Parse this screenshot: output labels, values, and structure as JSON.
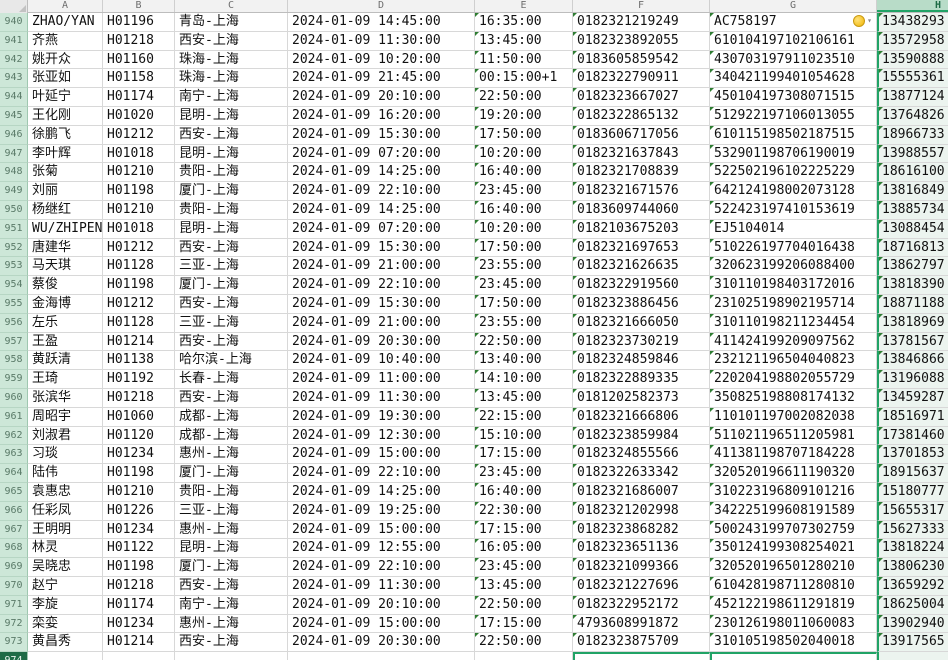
{
  "sheet": {
    "columns": [
      "A",
      "B",
      "C",
      "D",
      "E",
      "F",
      "G",
      "H"
    ],
    "icons": {
      "error_checking": "warning-circle",
      "dropdown": "▾"
    },
    "accent_colors": {
      "selection_green": "#21a366",
      "header_green": "#cde7d8",
      "warning_yellow": "#f0b400"
    },
    "rows": [
      {
        "n": "940",
        "a": "ZHAO/YAN",
        "b": "H01196",
        "c": "青岛-上海",
        "d": "2024-01-09 14:45:00",
        "e": "16:35:00",
        "f": "0182321219249",
        "g": "AC758197",
        "h": "13438293",
        "warning": true
      },
      {
        "n": "941",
        "a": "齐燕",
        "b": "H01218",
        "c": "西安-上海",
        "d": "2024-01-09 11:30:00",
        "e": "13:45:00",
        "f": "0182323892055",
        "g": "610104197102106161",
        "h": "13572958"
      },
      {
        "n": "942",
        "a": "姚开众",
        "b": "H01160",
        "c": "珠海-上海",
        "d": "2024-01-09 10:20:00",
        "e": "11:50:00",
        "f": "0183605859542",
        "g": "430703197911023510",
        "h": "13590888"
      },
      {
        "n": "943",
        "a": "张亚如",
        "b": "H01158",
        "c": "珠海-上海",
        "d": "2024-01-09 21:45:00",
        "e": "00:15:00+1",
        "f": "0182322790911",
        "g": "340421199401054628",
        "h": "15555361"
      },
      {
        "n": "944",
        "a": "叶延宁",
        "b": "H01174",
        "c": "南宁-上海",
        "d": "2024-01-09 20:10:00",
        "e": "22:50:00",
        "f": "0182323667027",
        "g": "450104197308071515",
        "h": "13877124"
      },
      {
        "n": "945",
        "a": "王化刚",
        "b": "H01020",
        "c": "昆明-上海",
        "d": "2024-01-09 16:20:00",
        "e": "19:20:00",
        "f": "0182322865132",
        "g": "512922197106013055",
        "h": "13764826"
      },
      {
        "n": "946",
        "a": "徐鹏飞",
        "b": "H01212",
        "c": "西安-上海",
        "d": "2024-01-09 15:30:00",
        "e": "17:50:00",
        "f": "0183606717056",
        "g": "610115198502187515",
        "h": "18966733"
      },
      {
        "n": "947",
        "a": "李叶辉",
        "b": "H01018",
        "c": "昆明-上海",
        "d": "2024-01-09 07:20:00",
        "e": "10:20:00",
        "f": "0182321637843",
        "g": "532901198706190019",
        "h": "13988557"
      },
      {
        "n": "948",
        "a": "张菊",
        "b": "H01210",
        "c": "贵阳-上海",
        "d": "2024-01-09 14:25:00",
        "e": "16:40:00",
        "f": "0182321708839",
        "g": "522502196102225229",
        "h": "18616100"
      },
      {
        "n": "949",
        "a": "刘丽",
        "b": "H01198",
        "c": "厦门-上海",
        "d": "2024-01-09 22:10:00",
        "e": "23:45:00",
        "f": "0182321671576",
        "g": "642124198002073128",
        "h": "13816849"
      },
      {
        "n": "950",
        "a": "杨继红",
        "b": "H01210",
        "c": "贵阳-上海",
        "d": "2024-01-09 14:25:00",
        "e": "16:40:00",
        "f": "0183609744060",
        "g": "522423197410153619",
        "h": "13885734"
      },
      {
        "n": "951",
        "a": "WU/ZHIPEN",
        "b": "H01018",
        "c": "昆明-上海",
        "d": "2024-01-09 07:20:00",
        "e": "10:20:00",
        "f": "0182103675203",
        "g": "EJ5104014",
        "h": "13088454"
      },
      {
        "n": "952",
        "a": "唐建华",
        "b": "H01212",
        "c": "西安-上海",
        "d": "2024-01-09 15:30:00",
        "e": "17:50:00",
        "f": "0182321697653",
        "g": "510226197704016438",
        "h": "18716813"
      },
      {
        "n": "953",
        "a": "马天琪",
        "b": "H01128",
        "c": "三亚-上海",
        "d": "2024-01-09 21:00:00",
        "e": "23:55:00",
        "f": "0182321626635",
        "g": "320623199206088400",
        "h": "13862797"
      },
      {
        "n": "954",
        "a": "蔡俊",
        "b": "H01198",
        "c": "厦门-上海",
        "d": "2024-01-09 22:10:00",
        "e": "23:45:00",
        "f": "0182322919560",
        "g": "310110198403172016",
        "h": "13818390"
      },
      {
        "n": "955",
        "a": "金海博",
        "b": "H01212",
        "c": "西安-上海",
        "d": "2024-01-09 15:30:00",
        "e": "17:50:00",
        "f": "0182323886456",
        "g": "231025198902195714",
        "h": "18871188"
      },
      {
        "n": "956",
        "a": "左乐",
        "b": "H01128",
        "c": "三亚-上海",
        "d": "2024-01-09 21:00:00",
        "e": "23:55:00",
        "f": "0182321666050",
        "g": "310110198211234454",
        "h": "13818969"
      },
      {
        "n": "957",
        "a": "王盈",
        "b": "H01214",
        "c": "西安-上海",
        "d": "2024-01-09 20:30:00",
        "e": "22:50:00",
        "f": "0182323730219",
        "g": "411424199209097562",
        "h": "13781567"
      },
      {
        "n": "958",
        "a": "黄跃清",
        "b": "H01138",
        "c": "哈尔滨-上海",
        "d": "2024-01-09 10:40:00",
        "e": "13:40:00",
        "f": "0182324859846",
        "g": "232121196504040823",
        "h": "13846866"
      },
      {
        "n": "959",
        "a": "王琦",
        "b": "H01192",
        "c": "长春-上海",
        "d": "2024-01-09 11:00:00",
        "e": "14:10:00",
        "f": "0182322889335",
        "g": "220204198802055729",
        "h": "13196088"
      },
      {
        "n": "960",
        "a": "张滨华",
        "b": "H01218",
        "c": "西安-上海",
        "d": "2024-01-09 11:30:00",
        "e": "13:45:00",
        "f": "0181202582373",
        "g": "350825198808174132",
        "h": "13459287"
      },
      {
        "n": "961",
        "a": "周昭宇",
        "b": "H01060",
        "c": "成都-上海",
        "d": "2024-01-09 19:30:00",
        "e": "22:15:00",
        "f": "0182321666806",
        "g": "110101197002082038",
        "h": "18516971"
      },
      {
        "n": "962",
        "a": "刘淑君",
        "b": "H01120",
        "c": "成都-上海",
        "d": "2024-01-09 12:30:00",
        "e": "15:10:00",
        "f": "0182323859984",
        "g": "511021196511205981",
        "h": "17381460"
      },
      {
        "n": "963",
        "a": "习琰",
        "b": "H01234",
        "c": "惠州-上海",
        "d": "2024-01-09 15:00:00",
        "e": "17:15:00",
        "f": "0182324855566",
        "g": "411381198707184228",
        "h": "13701853"
      },
      {
        "n": "964",
        "a": "陆伟",
        "b": "H01198",
        "c": "厦门-上海",
        "d": "2024-01-09 22:10:00",
        "e": "23:45:00",
        "f": "0182322633342",
        "g": "320520196611190320",
        "h": "18915637"
      },
      {
        "n": "965",
        "a": "袁惠忠",
        "b": "H01210",
        "c": "贵阳-上海",
        "d": "2024-01-09 14:25:00",
        "e": "16:40:00",
        "f": "0182321686007",
        "g": "310223196809101216",
        "h": "15180777"
      },
      {
        "n": "966",
        "a": "任彩凤",
        "b": "H01226",
        "c": "三亚-上海",
        "d": "2024-01-09 19:25:00",
        "e": "22:30:00",
        "f": "0182321202998",
        "g": "342225199608191589",
        "h": "15655317"
      },
      {
        "n": "967",
        "a": "王明明",
        "b": "H01234",
        "c": "惠州-上海",
        "d": "2024-01-09 15:00:00",
        "e": "17:15:00",
        "f": "0182323868282",
        "g": "500243199707302759",
        "h": "15627333"
      },
      {
        "n": "968",
        "a": "林灵",
        "b": "H01122",
        "c": "昆明-上海",
        "d": "2024-01-09 12:55:00",
        "e": "16:05:00",
        "f": "0182323651136",
        "g": "350124199308254021",
        "h": "13818224"
      },
      {
        "n": "969",
        "a": "吴晓忠",
        "b": "H01198",
        "c": "厦门-上海",
        "d": "2024-01-09 22:10:00",
        "e": "23:45:00",
        "f": "0182321099366",
        "g": "320520196501280210",
        "h": "13806230"
      },
      {
        "n": "970",
        "a": "赵宁",
        "b": "H01218",
        "c": "西安-上海",
        "d": "2024-01-09 11:30:00",
        "e": "13:45:00",
        "f": "0182321227696",
        "g": "610428198711280810",
        "h": "13659292"
      },
      {
        "n": "971",
        "a": "李旋",
        "b": "H01174",
        "c": "南宁-上海",
        "d": "2024-01-09 20:10:00",
        "e": "22:50:00",
        "f": "0182322952172",
        "g": "452122198611291819",
        "h": "18625004"
      },
      {
        "n": "972",
        "a": "栾娈",
        "b": "H01234",
        "c": "惠州-上海",
        "d": "2024-01-09 15:00:00",
        "e": "17:15:00",
        "f": "4793608991872",
        "g": "230126198011060083",
        "h": "13902940"
      },
      {
        "n": "973",
        "a": "黄昌秀",
        "b": "H01214",
        "c": "西安-上海",
        "d": "2024-01-09 20:30:00",
        "e": "22:50:00",
        "f": "0182323875709",
        "g": "310105198502040018",
        "h": "13917565"
      },
      {
        "n": "974",
        "a": "",
        "b": "",
        "c": "",
        "d": "",
        "e": "",
        "f": "",
        "g": "",
        "h": "",
        "active": true,
        "sel_fg": true
      }
    ]
  }
}
